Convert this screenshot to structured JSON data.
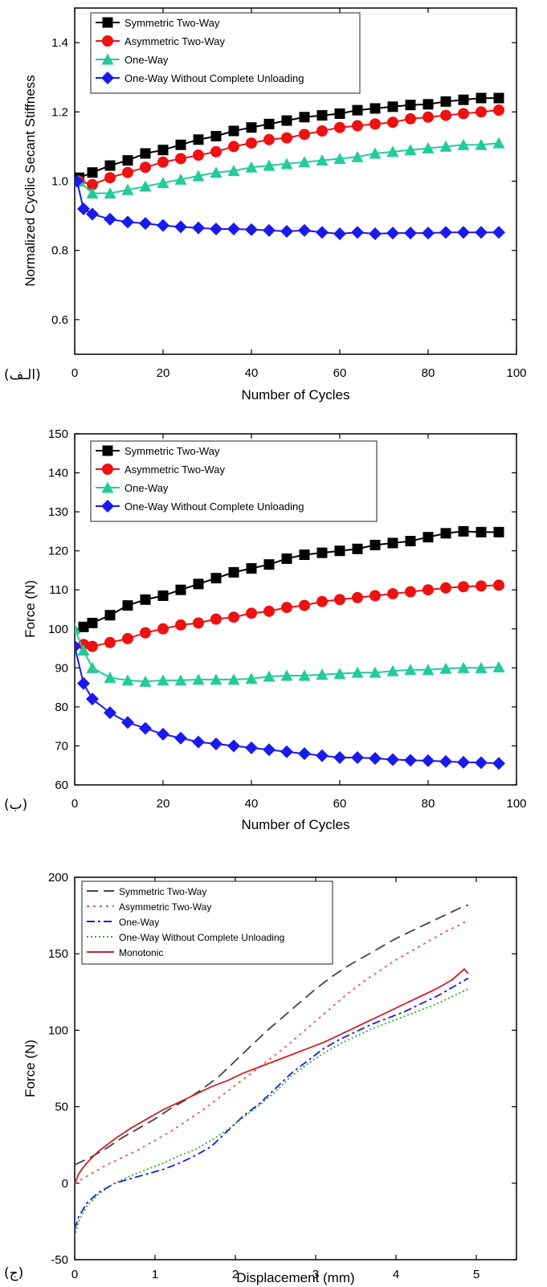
{
  "chart_data": [
    {
      "type": "line",
      "panel_label": "(الـف)",
      "xlabel": "Number of Cycles",
      "ylabel": "Normalized Cyclic Secant Stiffness",
      "xlim": [
        0,
        100
      ],
      "ylim": [
        0.5,
        1.5
      ],
      "xticks": [
        0,
        20,
        40,
        60,
        80,
        100
      ],
      "yticks": [
        0.6,
        0.8,
        1.0,
        1.2,
        1.4
      ],
      "ytick_labels": [
        "0.6",
        "0.8",
        "1.0",
        "1.2",
        "1.4"
      ],
      "legend_position": "top-left",
      "series": [
        {
          "name": "Symmetric Two-Way",
          "color": "#000000",
          "marker": "square",
          "x": [
            1,
            4,
            8,
            12,
            16,
            20,
            24,
            28,
            32,
            36,
            40,
            44,
            48,
            52,
            56,
            60,
            64,
            68,
            72,
            76,
            80,
            84,
            88,
            92,
            96
          ],
          "y": [
            1.01,
            1.025,
            1.045,
            1.06,
            1.08,
            1.09,
            1.105,
            1.12,
            1.13,
            1.145,
            1.155,
            1.165,
            1.175,
            1.185,
            1.19,
            1.195,
            1.205,
            1.21,
            1.215,
            1.22,
            1.222,
            1.23,
            1.235,
            1.24,
            1.24
          ]
        },
        {
          "name": "Asymmetric Two-Way",
          "color": "#ee1111",
          "marker": "circle",
          "x": [
            1,
            4,
            8,
            12,
            16,
            20,
            24,
            28,
            32,
            36,
            40,
            44,
            48,
            52,
            56,
            60,
            64,
            68,
            72,
            76,
            80,
            84,
            88,
            92,
            96
          ],
          "y": [
            1.0,
            0.99,
            1.01,
            1.025,
            1.04,
            1.055,
            1.065,
            1.075,
            1.085,
            1.1,
            1.11,
            1.12,
            1.125,
            1.135,
            1.145,
            1.155,
            1.16,
            1.165,
            1.17,
            1.18,
            1.185,
            1.19,
            1.195,
            1.2,
            1.205
          ]
        },
        {
          "name": "One-Way",
          "color": "#22cc99",
          "marker": "triangle",
          "x": [
            1,
            4,
            8,
            12,
            16,
            20,
            24,
            28,
            32,
            36,
            40,
            44,
            48,
            52,
            56,
            60,
            64,
            68,
            72,
            76,
            80,
            84,
            88,
            92,
            96
          ],
          "y": [
            1.0,
            0.965,
            0.965,
            0.975,
            0.985,
            0.995,
            1.005,
            1.015,
            1.025,
            1.03,
            1.04,
            1.045,
            1.05,
            1.055,
            1.06,
            1.065,
            1.07,
            1.08,
            1.085,
            1.09,
            1.095,
            1.1,
            1.105,
            1.105,
            1.11
          ]
        },
        {
          "name": "One-Way Without Complete Unloading",
          "color": "#1a1aee",
          "marker": "diamond",
          "x": [
            0.5,
            2,
            4,
            8,
            12,
            16,
            20,
            24,
            28,
            32,
            36,
            40,
            44,
            48,
            52,
            56,
            60,
            64,
            68,
            72,
            76,
            80,
            84,
            88,
            92,
            96
          ],
          "y": [
            1.0,
            0.92,
            0.905,
            0.89,
            0.882,
            0.878,
            0.872,
            0.868,
            0.865,
            0.862,
            0.862,
            0.86,
            0.858,
            0.855,
            0.858,
            0.852,
            0.848,
            0.852,
            0.848,
            0.85,
            0.85,
            0.85,
            0.852,
            0.852,
            0.852,
            0.852
          ]
        }
      ]
    },
    {
      "type": "line",
      "panel_label": "(ب)",
      "xlabel": "Number of Cycles",
      "ylabel": "Force (N)",
      "xlim": [
        0,
        100
      ],
      "ylim": [
        60,
        150
      ],
      "xticks": [
        0,
        20,
        40,
        60,
        80,
        100
      ],
      "yticks": [
        60,
        70,
        80,
        90,
        100,
        110,
        120,
        130,
        140,
        150
      ],
      "ytick_labels": [
        "60",
        "70",
        "80",
        "90",
        "100",
        "110",
        "120",
        "130",
        "140",
        "150"
      ],
      "legend_position": "top-left",
      "series": [
        {
          "name": "Symmetric Two-Way",
          "color": "#000000",
          "marker": "square",
          "x": [
            2,
            4,
            8,
            12,
            16,
            20,
            24,
            28,
            32,
            36,
            40,
            44,
            48,
            52,
            56,
            60,
            64,
            68,
            72,
            76,
            80,
            84,
            88,
            92,
            96
          ],
          "y": [
            100.5,
            101.5,
            103.5,
            106,
            107.5,
            108.5,
            110,
            111.5,
            113,
            114.5,
            115.5,
            116.5,
            118,
            119,
            119.5,
            120,
            120.5,
            121.5,
            122,
            122.5,
            123.5,
            124.5,
            125,
            124.8,
            124.8
          ]
        },
        {
          "name": "Asymmetric Two-Way",
          "color": "#ee1111",
          "marker": "circle",
          "x": [
            2,
            4,
            8,
            12,
            16,
            20,
            24,
            28,
            32,
            36,
            40,
            44,
            48,
            52,
            56,
            60,
            64,
            68,
            72,
            76,
            80,
            84,
            88,
            92,
            96
          ],
          "y": [
            96,
            95.5,
            96.5,
            97.5,
            99,
            100,
            101,
            101.5,
            102.5,
            103,
            104,
            104.5,
            105.5,
            106,
            107,
            107.5,
            108,
            108.5,
            109,
            109.5,
            110,
            110.5,
            110.8,
            111,
            111.2
          ]
        },
        {
          "name": "One-Way",
          "color": "#22cc99",
          "marker": "triangle",
          "x": [
            0,
            2,
            4,
            8,
            12,
            16,
            20,
            24,
            28,
            32,
            36,
            40,
            44,
            48,
            52,
            56,
            60,
            64,
            68,
            72,
            76,
            80,
            84,
            88,
            92,
            96
          ],
          "y": [
            100,
            94.5,
            90,
            87.5,
            86.8,
            86.5,
            86.8,
            86.8,
            87,
            87,
            87,
            87.2,
            87.8,
            88,
            88,
            88.3,
            88.5,
            88.8,
            88.8,
            89.2,
            89.5,
            89.5,
            89.8,
            90,
            90,
            90.2
          ]
        },
        {
          "name": "One-Way Without Complete Unloading",
          "color": "#1a1aee",
          "marker": "diamond",
          "x": [
            0,
            2,
            4,
            8,
            12,
            16,
            20,
            24,
            28,
            32,
            36,
            40,
            44,
            48,
            52,
            56,
            60,
            64,
            68,
            72,
            76,
            80,
            84,
            88,
            92,
            96
          ],
          "y": [
            95.5,
            86,
            82,
            78.5,
            76,
            74.5,
            73,
            72,
            71,
            70.5,
            70,
            69.5,
            69,
            68.5,
            68,
            67.5,
            67,
            67,
            66.8,
            66.5,
            66.3,
            66.2,
            66,
            65.8,
            65.7,
            65.5
          ]
        }
      ]
    },
    {
      "type": "line",
      "panel_label": "(ج)",
      "xlabel": "Displacement (mm)",
      "ylabel": "Force (N)",
      "xlim": [
        0,
        5.5
      ],
      "ylim": [
        -50,
        200
      ],
      "xticks": [
        0,
        1,
        2,
        3,
        4,
        5
      ],
      "yticks": [
        -50,
        0,
        50,
        100,
        150,
        200
      ],
      "ytick_labels": [
        "-50",
        "0",
        "50",
        "100",
        "150",
        "200"
      ],
      "legend_position": "top-left",
      "series": [
        {
          "name": "Symmetric Two-Way",
          "color": "#444444",
          "dash": "14,7",
          "x": [
            0,
            0.2,
            0.4,
            0.6,
            0.8,
            1.0,
            1.2,
            1.4,
            1.6,
            1.8,
            2.0,
            2.2,
            2.4,
            2.6,
            2.8,
            3.0,
            3.2,
            3.4,
            3.6,
            3.8,
            4.0,
            4.2,
            4.4,
            4.6,
            4.8,
            4.9
          ],
          "y": [
            12,
            17,
            23,
            30,
            36,
            42,
            49,
            55,
            62,
            70,
            80,
            90,
            100,
            109,
            118,
            127,
            135,
            142,
            148,
            154,
            160,
            165,
            170,
            175,
            180,
            182
          ]
        },
        {
          "name": "Asymmetric Two-Way",
          "color": "#ee5555",
          "dash": "3,5",
          "x": [
            0,
            0.2,
            0.4,
            0.6,
            0.8,
            1.0,
            1.2,
            1.4,
            1.6,
            1.8,
            2.0,
            2.2,
            2.4,
            2.6,
            2.8,
            3.0,
            3.2,
            3.4,
            3.6,
            3.8,
            4.0,
            4.2,
            4.4,
            4.6,
            4.8,
            4.9
          ],
          "y": [
            0,
            6,
            12,
            17,
            22,
            28,
            34,
            41,
            48,
            56,
            64,
            72,
            80,
            88,
            97,
            106,
            115,
            124,
            132,
            139,
            146,
            152,
            158,
            164,
            169,
            172
          ]
        },
        {
          "name": "One-Way",
          "color": "#1a1aee",
          "dash": "10,4,3,4",
          "x": [
            0,
            0.05,
            0.15,
            0.3,
            0.5,
            0.7,
            0.9,
            1.1,
            1.3,
            1.5,
            1.7,
            1.9,
            2.1,
            2.3,
            2.5,
            2.7,
            2.9,
            3.1,
            3.3,
            3.5,
            3.7,
            3.9,
            4.1,
            4.3,
            4.5,
            4.7,
            4.9
          ],
          "y": [
            -30,
            -22,
            -13,
            -6,
            0,
            3,
            6,
            9,
            13,
            18,
            24,
            34,
            44,
            52,
            62,
            72,
            80,
            88,
            94,
            99,
            104,
            108,
            112,
            117,
            122,
            128,
            134
          ]
        },
        {
          "name": "One-Way Without Complete Unloading",
          "color": "#33aa33",
          "dash": "2,3",
          "x": [
            0,
            0.05,
            0.15,
            0.3,
            0.5,
            0.7,
            0.9,
            1.1,
            1.3,
            1.5,
            1.7,
            1.9,
            2.1,
            2.3,
            2.5,
            2.7,
            2.9,
            3.1,
            3.3,
            3.5,
            3.7,
            3.9,
            4.1,
            4.3,
            4.5,
            4.7,
            4.9
          ],
          "y": [
            -35,
            -25,
            -15,
            -7,
            0,
            5,
            9,
            13,
            18,
            22,
            28,
            35,
            43,
            51,
            60,
            70,
            78,
            85,
            91,
            96,
            101,
            105,
            109,
            113,
            117,
            122,
            127
          ]
        },
        {
          "name": "Monotonic",
          "color": "#cc2222",
          "dash": "",
          "x": [
            0,
            0.05,
            0.1,
            0.2,
            0.3,
            0.5,
            0.7,
            0.9,
            1.1,
            1.3,
            1.5,
            1.7,
            1.9,
            2.1,
            2.3,
            2.5,
            2.7,
            2.9,
            3.1,
            3.3,
            3.5,
            3.7,
            3.9,
            4.1,
            4.3,
            4.5,
            4.7,
            4.85,
            4.9
          ],
          "y": [
            0,
            6,
            10,
            16,
            21,
            29,
            36,
            42,
            48,
            53,
            58,
            63,
            67,
            72,
            76,
            80,
            84,
            88,
            92,
            97,
            102,
            107,
            112,
            117,
            122,
            127,
            133,
            140,
            137
          ]
        }
      ]
    }
  ]
}
